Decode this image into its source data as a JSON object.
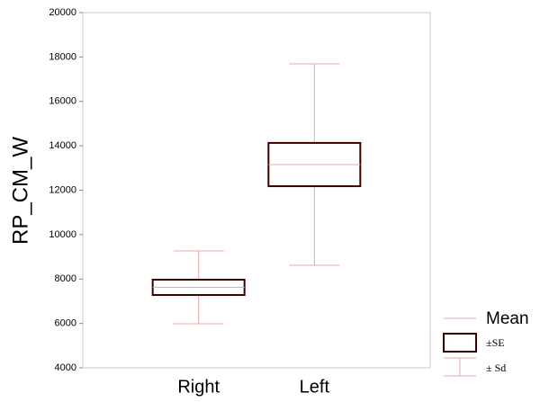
{
  "chart_data": {
    "type": "box-mean-se-sd",
    "ylabel": "RP_CM_W",
    "categories": [
      "Right",
      "Left"
    ],
    "mean": [
      7625,
      13155
    ],
    "se": [
      345,
      975
    ],
    "sd": [
      1640,
      4535
    ],
    "ylim": [
      4000,
      20000
    ],
    "yticks": [
      4000,
      6000,
      8000,
      10000,
      12000,
      14000,
      16000,
      18000,
      20000
    ],
    "legend": [
      "Mean",
      "±SE",
      "± Sd"
    ],
    "mean_color": "#e8a8a8",
    "box_color": "#3a0000",
    "whisker_color": "#e8a8a8"
  }
}
